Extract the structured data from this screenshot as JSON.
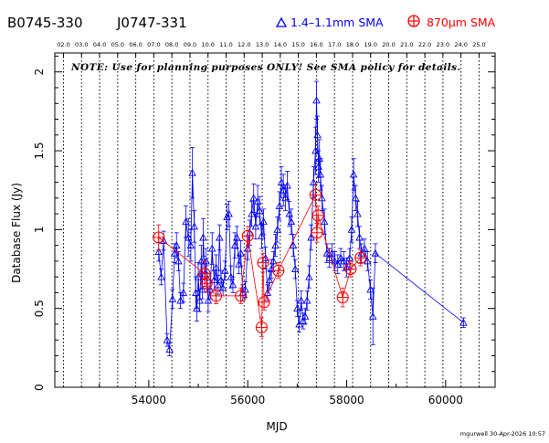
{
  "header": {
    "source_1": "B0745-330",
    "source_2": "J0747-331",
    "legend_triangle_label": "1.4–1.1mm SMA",
    "legend_circle_label": "870μm SMA",
    "triangle_color": "#0000ff",
    "circle_color": "#ff0000"
  },
  "note": "NOTE: Use for planning purposes ONLY! See SMA policy for details.",
  "footer": "mgurwell 30-Apr-2026 10:57",
  "chart_data": {
    "type": "scatter",
    "xlabel": "MJD",
    "ylabel": "Database Flux (Jy)",
    "xlim": [
      52100,
      61000
    ],
    "ylim": [
      0,
      2.12
    ],
    "x_ticks": [
      54000,
      56000,
      58000,
      60000
    ],
    "y_ticks": [
      0,
      0.5,
      1,
      1.5,
      2
    ],
    "y_tick_labels": [
      "0",
      "0.5",
      "1",
      "1.5",
      "2"
    ],
    "x_tick_labels": [
      "54000",
      "56000",
      "58000",
      "60000"
    ],
    "year_ticks": [
      {
        "label": "02.0",
        "mjd": 52275
      },
      {
        "label": "03.0",
        "mjd": 52640
      },
      {
        "label": "04.0",
        "mjd": 53005
      },
      {
        "label": "05.0",
        "mjd": 53371
      },
      {
        "label": "06.0",
        "mjd": 53736
      },
      {
        "label": "07.0",
        "mjd": 54101
      },
      {
        "label": "08.0",
        "mjd": 54466
      },
      {
        "label": "09.0",
        "mjd": 54832
      },
      {
        "label": "10.0",
        "mjd": 55197
      },
      {
        "label": "11.0",
        "mjd": 55562
      },
      {
        "label": "12.0",
        "mjd": 55927
      },
      {
        "label": "13.0",
        "mjd": 56293
      },
      {
        "label": "14.0",
        "mjd": 56658
      },
      {
        "label": "15.0",
        "mjd": 57023
      },
      {
        "label": "16.0",
        "mjd": 57388
      },
      {
        "label": "17.0",
        "mjd": 57754
      },
      {
        "label": "18.0",
        "mjd": 58119
      },
      {
        "label": "19.0",
        "mjd": 58484
      },
      {
        "label": "20.0",
        "mjd": 58849
      },
      {
        "label": "21.0",
        "mjd": 59215
      },
      {
        "label": "22.0",
        "mjd": 59580
      },
      {
        "label": "23.0",
        "mjd": 59945
      },
      {
        "label": "24.0",
        "mjd": 60310
      },
      {
        "label": "25.0",
        "mjd": 60676
      }
    ],
    "series": [
      {
        "name": "1.4–1.1mm SMA",
        "marker": "triangle",
        "color": "#0000ff",
        "points": [
          [
            54200,
            0.86,
            0.06
          ],
          [
            54250,
            0.7,
            0.05
          ],
          [
            54300,
            0.93,
            0.06
          ],
          [
            54370,
            0.3,
            0.04
          ],
          [
            54420,
            0.24,
            0.04
          ],
          [
            54480,
            0.56,
            0.06
          ],
          [
            54520,
            0.85,
            0.06
          ],
          [
            54560,
            0.9,
            0.08
          ],
          [
            54600,
            0.8,
            0.06
          ],
          [
            54640,
            0.55,
            0.05
          ],
          [
            54700,
            0.6,
            0.06
          ],
          [
            54750,
            1.05,
            0.1
          ],
          [
            54800,
            0.95,
            0.12
          ],
          [
            54850,
            0.9,
            0.1
          ],
          [
            54880,
            1.36,
            0.16
          ],
          [
            54920,
            1.02,
            0.1
          ],
          [
            54950,
            0.6,
            0.1
          ],
          [
            54970,
            0.5,
            0.08
          ],
          [
            55000,
            0.7,
            0.09
          ],
          [
            55030,
            0.55,
            0.07
          ],
          [
            55060,
            0.8,
            0.1
          ],
          [
            55080,
            0.62,
            0.06
          ],
          [
            55100,
            0.95,
            0.12
          ],
          [
            55130,
            0.72,
            0.08
          ],
          [
            55160,
            0.8,
            0.08
          ],
          [
            55200,
            0.55,
            0.07
          ],
          [
            55240,
            0.62,
            0.06
          ],
          [
            55280,
            0.88,
            0.1
          ],
          [
            55320,
            0.68,
            0.06
          ],
          [
            55360,
            0.76,
            0.08
          ],
          [
            55400,
            0.65,
            0.06
          ],
          [
            55430,
            0.95,
            0.08
          ],
          [
            55460,
            0.68,
            0.06
          ],
          [
            55500,
            0.63,
            0.05
          ],
          [
            55540,
            0.74,
            0.06
          ],
          [
            55580,
            1.08,
            0.08
          ],
          [
            55620,
            1.1,
            0.08
          ],
          [
            55660,
            0.7,
            0.07
          ],
          [
            55700,
            0.65,
            0.05
          ],
          [
            55740,
            0.9,
            0.08
          ],
          [
            55780,
            0.95,
            0.07
          ],
          [
            55820,
            0.78,
            0.06
          ],
          [
            55860,
            0.85,
            0.08
          ],
          [
            55900,
            0.6,
            0.05
          ],
          [
            55950,
            0.62,
            0.05
          ],
          [
            56000,
            0.88,
            0.07
          ],
          [
            56040,
            0.98,
            0.08
          ],
          [
            56080,
            1.1,
            0.08
          ],
          [
            56120,
            1.2,
            0.09
          ],
          [
            56160,
            1.02,
            0.08
          ],
          [
            56200,
            1.18,
            0.1
          ],
          [
            56240,
            1.12,
            0.09
          ],
          [
            56280,
            0.96,
            0.08
          ],
          [
            56320,
            1.05,
            0.08
          ],
          [
            56360,
            0.82,
            0.07
          ],
          [
            56400,
            0.6,
            0.05
          ],
          [
            56440,
            0.68,
            0.06
          ],
          [
            56480,
            0.75,
            0.06
          ],
          [
            56520,
            0.8,
            0.06
          ],
          [
            56560,
            0.9,
            0.07
          ],
          [
            56600,
            1.0,
            0.08
          ],
          [
            56640,
            1.15,
            0.09
          ],
          [
            56680,
            1.3,
            0.1
          ],
          [
            56720,
            1.25,
            0.1
          ],
          [
            56760,
            1.2,
            0.08
          ],
          [
            56800,
            1.28,
            0.09
          ],
          [
            56840,
            1.1,
            0.08
          ],
          [
            56880,
            1.05,
            0.08
          ],
          [
            56920,
            0.9,
            0.07
          ],
          [
            56960,
            0.75,
            0.06
          ],
          [
            57000,
            0.5,
            0.05
          ],
          [
            57040,
            0.4,
            0.05
          ],
          [
            57080,
            0.55,
            0.06
          ],
          [
            57120,
            0.42,
            0.05
          ],
          [
            57160,
            0.45,
            0.05
          ],
          [
            57200,
            0.55,
            0.06
          ],
          [
            57240,
            0.7,
            0.07
          ],
          [
            57280,
            0.95,
            0.08
          ],
          [
            57330,
            1.3,
            0.1
          ],
          [
            57370,
            1.5,
            0.15
          ],
          [
            57390,
            1.82,
            0.12
          ],
          [
            57410,
            1.6,
            0.12
          ],
          [
            57430,
            1.4,
            0.1
          ],
          [
            57450,
            1.45,
            0.12
          ],
          [
            57470,
            1.35,
            0.1
          ],
          [
            57500,
            1.2,
            0.08
          ],
          [
            57550,
            1.05,
            0.08
          ],
          [
            57600,
            0.85,
            0.06
          ],
          [
            57650,
            0.82,
            0.06
          ],
          [
            57700,
            0.85,
            0.06
          ],
          [
            57760,
            0.8,
            0.06
          ],
          [
            57820,
            0.78,
            0.06
          ],
          [
            57880,
            0.82,
            0.06
          ],
          [
            57940,
            0.8,
            0.06
          ],
          [
            58000,
            0.76,
            0.06
          ],
          [
            58060,
            0.82,
            0.06
          ],
          [
            58100,
            1.0,
            0.08
          ],
          [
            58140,
            1.35,
            0.1
          ],
          [
            58180,
            1.2,
            0.08
          ],
          [
            58220,
            1.1,
            0.08
          ],
          [
            58260,
            0.95,
            0.07
          ],
          [
            58300,
            0.85,
            0.06
          ],
          [
            58360,
            0.88,
            0.06
          ],
          [
            58420,
            0.8,
            0.06
          ],
          [
            58480,
            0.62,
            0.06
          ],
          [
            58530,
            0.45,
            0.18
          ],
          [
            58580,
            0.85,
            0.06
          ],
          [
            60360,
            0.41,
            0.03
          ]
        ]
      },
      {
        "name": "870μm SMA",
        "marker": "circle-plus",
        "color": "#ff0000",
        "points": [
          [
            54200,
            0.95,
            0.08
          ],
          [
            55130,
            0.72,
            0.08
          ],
          [
            55170,
            0.66,
            0.06
          ],
          [
            55360,
            0.58,
            0.05
          ],
          [
            55860,
            0.58,
            0.05
          ],
          [
            56000,
            0.96,
            0.06
          ],
          [
            56280,
            0.38,
            0.06
          ],
          [
            56310,
            0.79,
            0.06
          ],
          [
            56330,
            0.54,
            0.05
          ],
          [
            56620,
            0.74,
            0.05
          ],
          [
            57370,
            1.22,
            0.07
          ],
          [
            57400,
            0.98,
            0.06
          ],
          [
            57420,
            1.09,
            0.06
          ],
          [
            57920,
            0.57,
            0.06
          ],
          [
            58080,
            0.75,
            0.05
          ],
          [
            58280,
            0.82,
            0.05
          ]
        ]
      }
    ]
  }
}
